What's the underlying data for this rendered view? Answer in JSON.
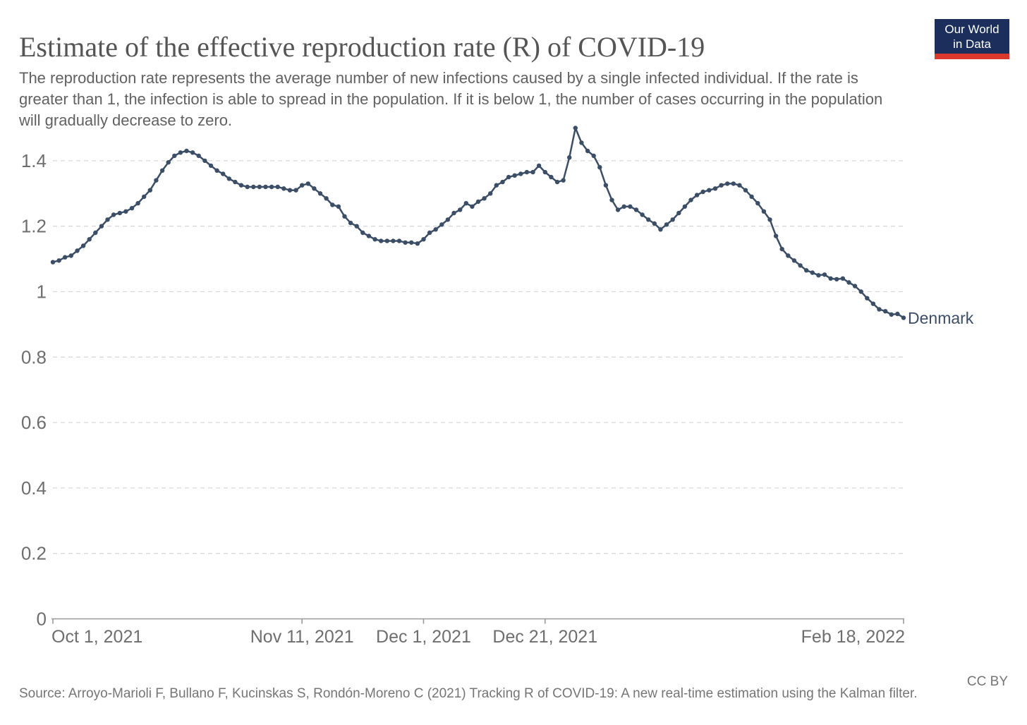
{
  "header": {
    "title": "Estimate of the effective reproduction rate (R) of COVID-19",
    "subtitle": "The reproduction rate represents the average number of new infections caused by a single infected individual. If the rate is greater than 1, the infection is able to spread in the population. If it is below 1, the number of cases occurring in the population will gradually decrease to zero.",
    "logo": {
      "line1": "Our World",
      "line2": "in Data"
    }
  },
  "chart_data": {
    "type": "line",
    "title": "Estimate of the effective reproduction rate (R) of COVID-19",
    "end_label": "Denmark",
    "frequency": "daily",
    "x_start": "Oct 1, 2021",
    "x_end": "Feb 18, 2022",
    "x_tick_labels": [
      "Oct 1, 2021",
      "Nov 11, 2021",
      "Dec 1, 2021",
      "Dec 21, 2021",
      "Feb 18, 2022"
    ],
    "x_tick_day_index": [
      0,
      41,
      61,
      81,
      140
    ],
    "x_tick_anchor": [
      "start",
      "middle",
      "middle",
      "middle",
      "end"
    ],
    "y_ticks": [
      0,
      0.2,
      0.4,
      0.6,
      0.8,
      1,
      1.2,
      1.4
    ],
    "y_tick_labels": [
      "0",
      "0.2",
      "0.4",
      "0.6",
      "0.8",
      "1",
      "1.2",
      "1.4"
    ],
    "ylim": [
      0,
      1.51
    ],
    "grid": "horizontal-dashed",
    "legend_position": "end-of-line",
    "series": [
      {
        "name": "Denmark",
        "color": "#3c4e66",
        "values": [
          1.09,
          1.095,
          1.105,
          1.11,
          1.125,
          1.14,
          1.16,
          1.18,
          1.2,
          1.22,
          1.235,
          1.24,
          1.245,
          1.255,
          1.27,
          1.29,
          1.31,
          1.34,
          1.37,
          1.395,
          1.415,
          1.425,
          1.43,
          1.425,
          1.415,
          1.4,
          1.385,
          1.37,
          1.36,
          1.345,
          1.335,
          1.325,
          1.32,
          1.32,
          1.32,
          1.32,
          1.32,
          1.32,
          1.315,
          1.31,
          1.31,
          1.325,
          1.33,
          1.315,
          1.3,
          1.285,
          1.265,
          1.26,
          1.23,
          1.21,
          1.2,
          1.18,
          1.17,
          1.16,
          1.155,
          1.155,
          1.155,
          1.155,
          1.15,
          1.15,
          1.147,
          1.16,
          1.18,
          1.19,
          1.205,
          1.22,
          1.24,
          1.25,
          1.27,
          1.26,
          1.275,
          1.285,
          1.3,
          1.325,
          1.335,
          1.35,
          1.355,
          1.36,
          1.365,
          1.365,
          1.385,
          1.365,
          1.35,
          1.335,
          1.34,
          1.41,
          1.5,
          1.455,
          1.43,
          1.415,
          1.38,
          1.325,
          1.28,
          1.25,
          1.26,
          1.26,
          1.25,
          1.235,
          1.22,
          1.208,
          1.19,
          1.205,
          1.22,
          1.24,
          1.26,
          1.28,
          1.295,
          1.305,
          1.31,
          1.315,
          1.325,
          1.33,
          1.33,
          1.325,
          1.31,
          1.29,
          1.27,
          1.245,
          1.22,
          1.17,
          1.13,
          1.11,
          1.095,
          1.08,
          1.065,
          1.058,
          1.05,
          1.052,
          1.04,
          1.038,
          1.04,
          1.028,
          1.017,
          1.0,
          0.98,
          0.963,
          0.946,
          0.94,
          0.93,
          0.932,
          0.92
        ]
      }
    ]
  },
  "footer": {
    "source": "Source: Arroyo-Marioli F, Bullano F, Kucinskas S, Rondón-Moreno C (2021) Tracking R of COVID-19: A new real-time estimation using the Kalman filter.",
    "license": "CC BY"
  },
  "colors": {
    "line": "#3c4e66",
    "title_text": "#555555",
    "subtitle_text": "#616161",
    "tick_text": "#6e6e6e",
    "gridline": "#d9d9d9",
    "axis_line": "#9a9a9a",
    "logo_bg": "#1b2e5c",
    "logo_bar": "#dd382d",
    "footer_text": "#757575"
  }
}
